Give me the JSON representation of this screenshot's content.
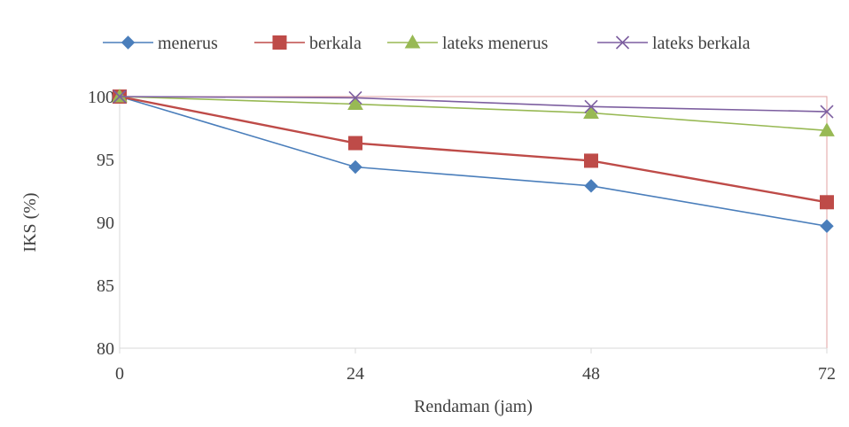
{
  "chart_data": {
    "type": "line",
    "title": "",
    "xlabel": "Rendaman (jam)",
    "ylabel": "IKS (%)",
    "x": [
      0,
      24,
      48,
      72
    ],
    "x_tick_labels": [
      "0",
      "24",
      "48",
      "72"
    ],
    "xlim": [
      0,
      72
    ],
    "ylim": [
      80,
      100
    ],
    "y_ticks": [
      80,
      85,
      90,
      95,
      100
    ],
    "y_tick_labels": [
      "80",
      "85",
      "90",
      "95",
      "100"
    ],
    "grid": false,
    "legend_position": "top",
    "series": [
      {
        "name": "menerus",
        "values": [
          100,
          94.4,
          92.9,
          89.7
        ],
        "color": "#4a7ebb",
        "marker": "diamond"
      },
      {
        "name": "berkala",
        "values": [
          100,
          96.3,
          94.9,
          91.6
        ],
        "color": "#be4b48",
        "marker": "square"
      },
      {
        "name": "lateks menerus",
        "values": [
          100,
          99.4,
          98.7,
          97.3
        ],
        "color": "#98b954",
        "marker": "triangle"
      },
      {
        "name": "lateks berkala",
        "values": [
          100,
          99.9,
          99.2,
          98.8
        ],
        "color": "#7d5fa0",
        "marker": "x"
      }
    ],
    "axis_color": "#d9d9d9",
    "plot_border_color": "#e0a0a0"
  }
}
